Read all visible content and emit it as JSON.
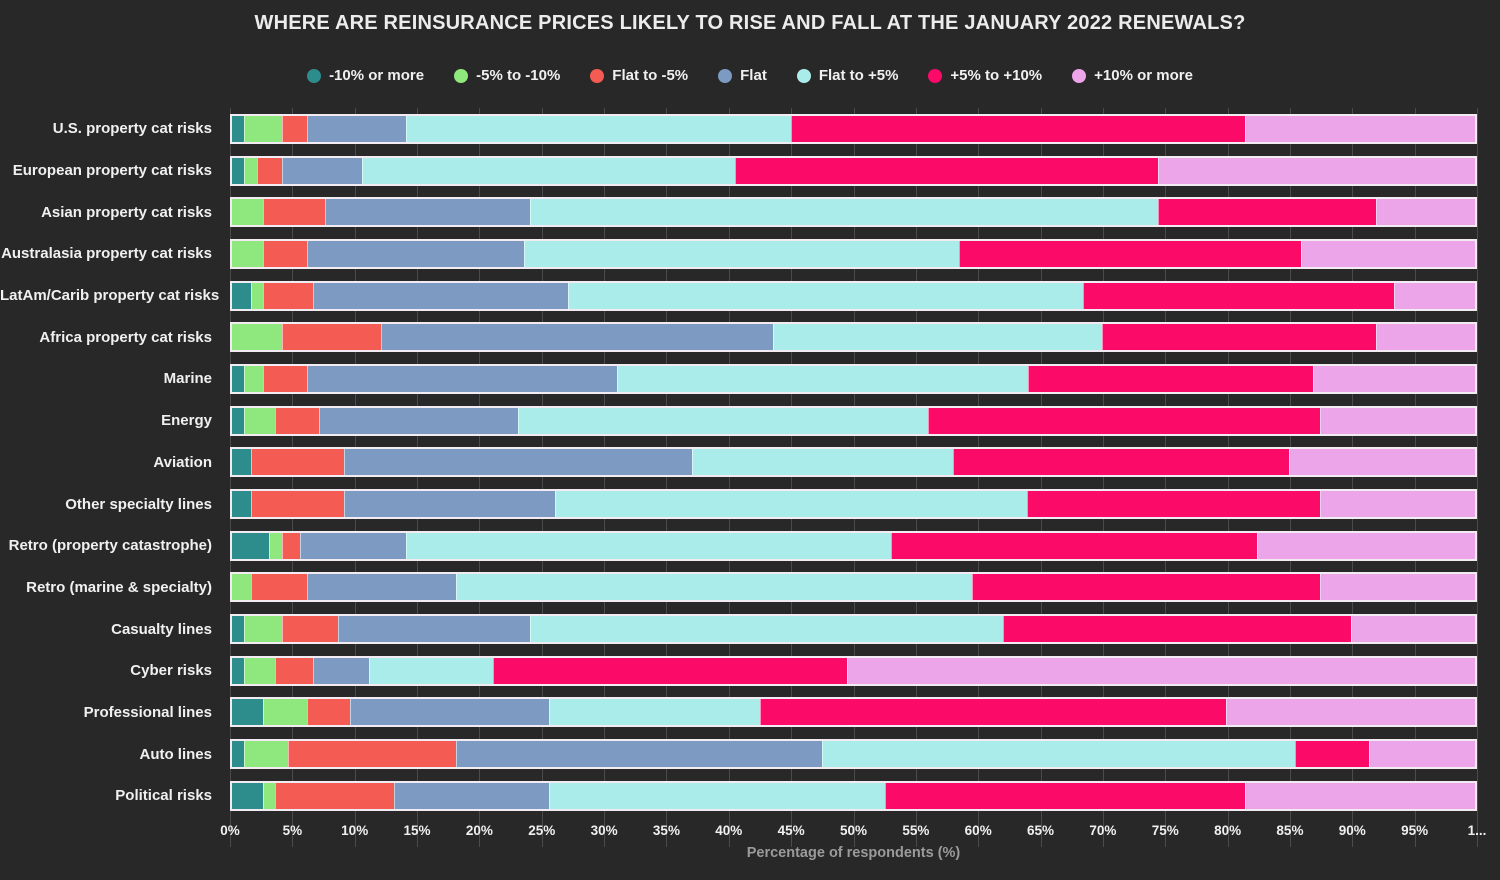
{
  "title": "WHERE ARE REINSURANCE PRICES LIKELY TO RISE AND FALL AT THE JANUARY 2022 RENEWALS?",
  "theme": {
    "background": "#282828",
    "gridline": "#4b4b4b",
    "bar_outline": "#f2ecf2",
    "title_color": "#ececec",
    "tick_color": "#f0f0f0",
    "axis_label_color": "#9b9b9b"
  },
  "chart_data": {
    "type": "bar",
    "variant": "horizontal-stacked",
    "title": "WHERE ARE REINSURANCE PRICES LIKELY TO RISE AND FALL AT THE JANUARY 2022 RENEWALS?",
    "xlabel": "Percentage of respondents (%)",
    "xlim": [
      0,
      100
    ],
    "x_tick_step": 5,
    "x_ticks": [
      "0%",
      "5%",
      "10%",
      "15%",
      "20%",
      "25%",
      "30%",
      "35%",
      "40%",
      "45%",
      "50%",
      "55%",
      "60%",
      "65%",
      "70%",
      "75%",
      "80%",
      "85%",
      "90%",
      "95%",
      "1..."
    ],
    "grid": "vertical",
    "legend_position": "top",
    "categories": [
      "U.S. property cat risks",
      "European property cat risks",
      "Asian property cat risks",
      "Australasia property cat risks",
      "LatAm/Carib property cat risks",
      "Africa property cat risks",
      "Marine",
      "Energy",
      "Aviation",
      "Other specialty lines",
      "Retro (property catastrophe)",
      "Retro (marine & specialty)",
      "Casualty lines",
      "Cyber risks",
      "Professional lines",
      "Auto lines",
      "Political risks"
    ],
    "series": [
      {
        "name": "-10% or more",
        "color": "#2d8c8c",
        "values": [
          1,
          1,
          0,
          0,
          1.5,
          0,
          1,
          1,
          1.5,
          1.5,
          3,
          0,
          1,
          1,
          2.5,
          1,
          2.5
        ]
      },
      {
        "name": "-5% to -10%",
        "color": "#8ee87d",
        "values": [
          3,
          1,
          2.5,
          2.5,
          1,
          4,
          1.5,
          2.5,
          0,
          0,
          1,
          1.5,
          3,
          2.5,
          3.5,
          3.5,
          1
        ]
      },
      {
        "name": "Flat to -5%",
        "color": "#f45b53",
        "values": [
          2,
          2,
          5,
          3.5,
          4,
          8,
          3.5,
          3.5,
          7.5,
          7.5,
          1.5,
          4.5,
          4.5,
          3,
          3.5,
          13.5,
          9.5
        ]
      },
      {
        "name": "Flat",
        "color": "#7c9ac2",
        "values": [
          8,
          6.5,
          16.5,
          17.5,
          20.5,
          31.5,
          25,
          16,
          28,
          17,
          8.5,
          12,
          15.5,
          4.5,
          16,
          29.5,
          12.5
        ]
      },
      {
        "name": "Flat to +5%",
        "color": "#aaeceA",
        "values": [
          31,
          30,
          50.5,
          35,
          41.5,
          26.5,
          33,
          33,
          21,
          38,
          39,
          41.5,
          38,
          10,
          17,
          38,
          27
        ]
      },
      {
        "name": "+5% to +10%",
        "color": "#fc0a68",
        "values": [
          36.5,
          34,
          17.5,
          27.5,
          25,
          22,
          23,
          31.5,
          27,
          23.5,
          29.5,
          28,
          28,
          28.5,
          37.5,
          6,
          29
        ]
      },
      {
        "name": "+10% or more",
        "color": "#eba5e8",
        "values": [
          18.5,
          25.5,
          8,
          14,
          6.5,
          8,
          13,
          12.5,
          15,
          12.5,
          17.5,
          12.5,
          10,
          50.5,
          20,
          8.5,
          18.5
        ]
      }
    ]
  }
}
